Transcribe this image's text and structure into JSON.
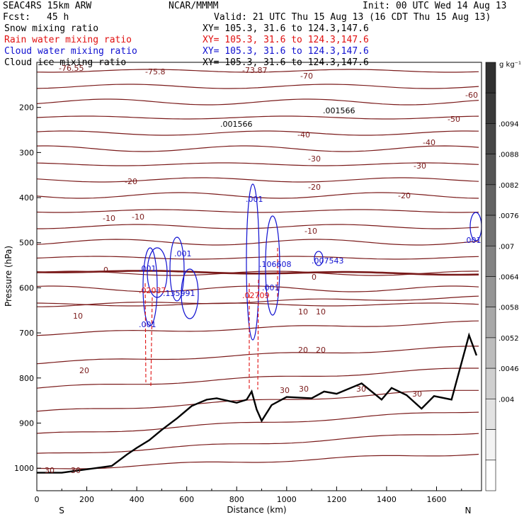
{
  "header": {
    "model": "SEAC4RS 15km ARW",
    "center": "NCAR/MMMM",
    "init": "Init: 00 UTC Wed 14 Aug 13",
    "fcst_label": "Fcst:",
    "fcst_value": "45 h",
    "valid": "Valid: 21 UTC Thu 15 Aug 13 (16 CDT Thu 15 Aug 13)",
    "fields": [
      {
        "label": "Snow mixing ratio",
        "xy": "XY= 105.3, 31.6 to 124.3,147.6",
        "color": "#000000"
      },
      {
        "label": "Rain water mixing ratio",
        "xy": "XY= 105.3, 31.6 to 124.3,147.6",
        "color": "#e01010"
      },
      {
        "label": "Cloud water mixing ratio",
        "xy": "XY= 105.3, 31.6 to 124.3,147.6",
        "color": "#1010d0"
      },
      {
        "label": "Cloud ice mixing ratio",
        "xy": "XY= 105.3, 31.6 to 124.3,147.6",
        "color": "#000000"
      }
    ]
  },
  "chart_data": {
    "type": "cross-section",
    "xlabel": "Distance (km)",
    "ylabel": "Pressure (hPa)",
    "x_ticks": [
      "0",
      "200",
      "400",
      "600",
      "800",
      "1000",
      "1200",
      "1400",
      "1600"
    ],
    "y_ticks": [
      "200",
      "300",
      "400",
      "500",
      "600",
      "700",
      "800",
      "900",
      "1000"
    ],
    "xlim": [
      0,
      1780
    ],
    "ylim": [
      1050,
      100
    ],
    "x_end_labels": {
      "left": "S",
      "right": "N"
    },
    "temperature_contour_labels": [
      "-76.55",
      "-75.8",
      "-73.87",
      "-70",
      "-60",
      "-50",
      "-40",
      "-30",
      "-20",
      "-10",
      "0",
      "10",
      "20",
      "30"
    ],
    "maxima_labels": [
      ".001566",
      ".001566",
      ".001",
      ".001",
      ".001",
      ".135991",
      ".02037",
      ".001",
      ".106608",
      ".02709",
      ".001",
      ".007543",
      ".001"
    ],
    "terrain_km_hpa": [
      [
        0,
        1010
      ],
      [
        100,
        1010
      ],
      [
        300,
        995
      ],
      [
        360,
        970
      ],
      [
        400,
        955
      ],
      [
        450,
        938
      ],
      [
        500,
        915
      ],
      [
        560,
        890
      ],
      [
        620,
        862
      ],
      [
        680,
        848
      ],
      [
        720,
        845
      ],
      [
        800,
        855
      ],
      [
        840,
        848
      ],
      [
        860,
        830
      ],
      [
        880,
        870
      ],
      [
        900,
        895
      ],
      [
        940,
        860
      ],
      [
        1000,
        842
      ],
      [
        1100,
        845
      ],
      [
        1150,
        830
      ],
      [
        1200,
        835
      ],
      [
        1300,
        812
      ],
      [
        1380,
        848
      ],
      [
        1420,
        822
      ],
      [
        1480,
        838
      ],
      [
        1540,
        868
      ],
      [
        1590,
        840
      ],
      [
        1660,
        848
      ],
      [
        1730,
        705
      ],
      [
        1760,
        750
      ]
    ],
    "colorbar": {
      "unit": "g kg⁻¹",
      "ticks": [
        ".0094",
        ".0088",
        ".0082",
        ".0076",
        ".007",
        ".0064",
        ".0058",
        ".0052",
        ".0046",
        ".004"
      ],
      "colors": [
        "#303030",
        "#3a3a3a",
        "#474747",
        "#555555",
        "#636363",
        "#727272",
        "#838383",
        "#959595",
        "#a8a8a8",
        "#bcbcbc",
        "#cfcfcf",
        "#e2e2e2",
        "#f3f3f3",
        "#ffffff"
      ]
    }
  }
}
